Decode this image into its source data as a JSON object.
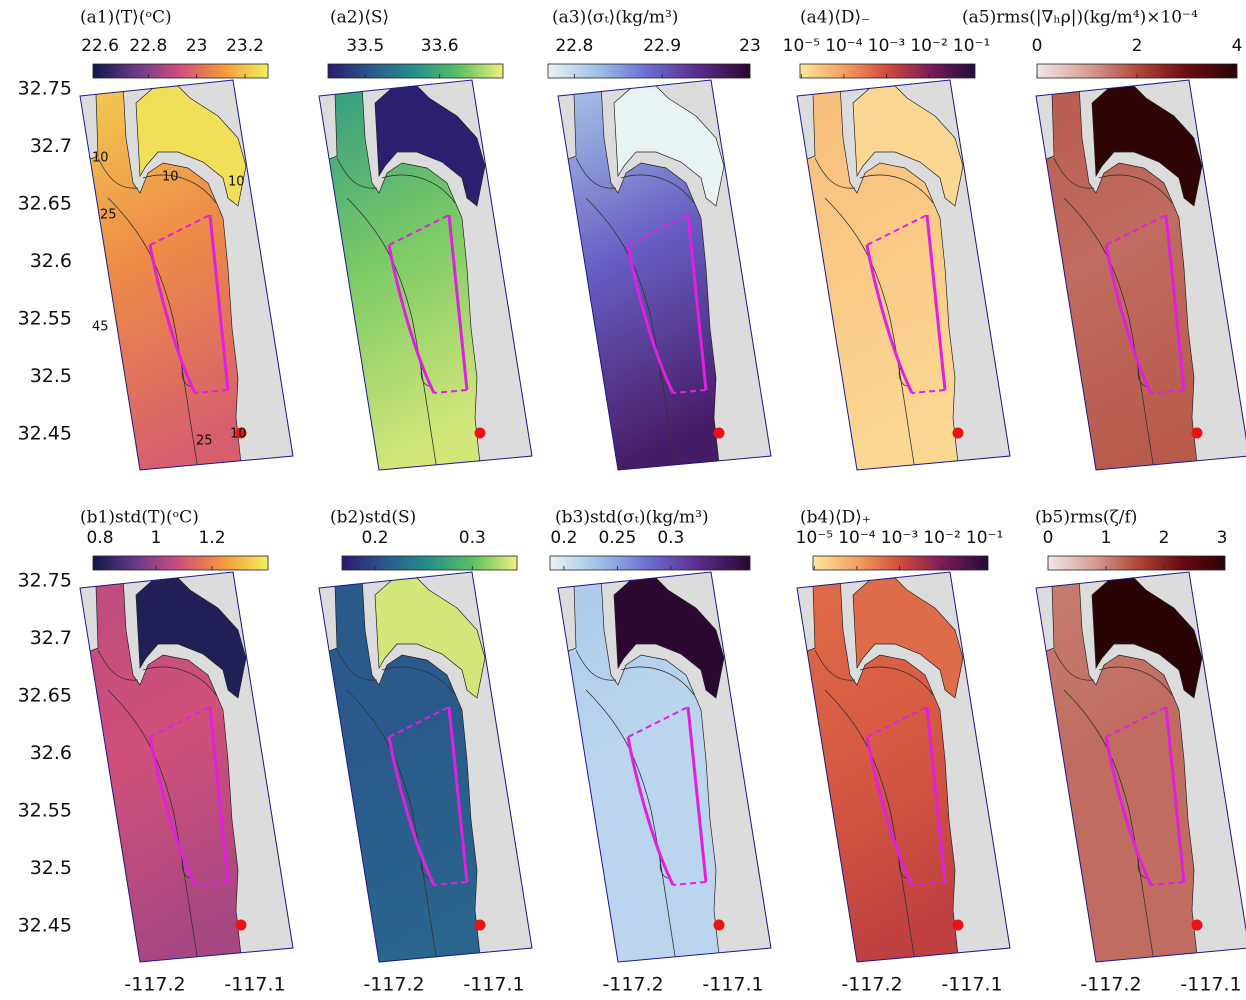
{
  "chart_data": [
    {
      "type": "map",
      "title": "(a1)⟨T⟩(ᵒC)",
      "xlim": [
        -117.277,
        -117.062
      ],
      "ylim": [
        32.4187,
        32.7596
      ],
      "yticks": [
        32.45,
        32.5,
        32.55,
        32.6,
        32.65,
        32.7,
        32.75
      ],
      "contour_labels": [
        10,
        10,
        10,
        25,
        45,
        25,
        10
      ],
      "colorbar": {
        "lim": [
          22.571,
          23.295
        ],
        "log": false,
        "ticks": [
          22.6,
          22.8,
          23,
          23.2
        ],
        "colors": [
          "#0d1a4a",
          "#6a3a8c",
          "#d0507a",
          "#f59a3a",
          "#f0f060"
        ]
      }
    },
    {
      "type": "map",
      "title": "(a2)⟨S⟩",
      "xlim": [
        -117.277,
        -117.062
      ],
      "ylim": [
        32.4187,
        32.7596
      ],
      "colorbar": {
        "lim": [
          33.45,
          33.685
        ],
        "log": false,
        "ticks": [
          33.5,
          33.6
        ],
        "colors": [
          "#2b1a6e",
          "#2a5a8c",
          "#24908c",
          "#5cc060",
          "#f0f080"
        ]
      }
    },
    {
      "type": "map",
      "title": "(a3)⟨σₜ⟩(kg/m³)",
      "xlim": [
        -117.277,
        -117.062
      ],
      "ylim": [
        32.4187,
        32.7596
      ],
      "colorbar": {
        "lim": [
          22.77,
          23.0
        ],
        "log": false,
        "ticks": [
          22.8,
          22.9,
          23
        ],
        "colors": [
          "#e8f4f4",
          "#9cc0e8",
          "#6a6ad0",
          "#5a2a8a",
          "#2a0830"
        ]
      }
    },
    {
      "type": "map",
      "title": "(a4)⟨D⟩₋",
      "xlim": [
        -117.277,
        -117.062
      ],
      "ylim": [
        32.4187,
        32.7596
      ],
      "colorbar": {
        "lim": [
          9.3e-06,
          0.12
        ],
        "log": true,
        "ticks": [
          {
            "value": 1e-05,
            "label": "10⁻⁵"
          },
          {
            "value": 0.0001,
            "label": "10⁻⁴"
          },
          {
            "value": 0.001,
            "label": "10⁻³"
          },
          {
            "value": 0.01,
            "label": "10⁻²"
          },
          {
            "value": 0.1,
            "label": "10⁻¹"
          }
        ],
        "colors": [
          "#fbe6a0",
          "#f5a060",
          "#d04a3a",
          "#7a1a5a",
          "#200c3a"
        ]
      }
    },
    {
      "type": "map",
      "title": "(a5)rms(|∇ₕρ|)(kg/m⁴)×10⁻⁴",
      "xlim": [
        -117.277,
        -117.062
      ],
      "ylim": [
        32.4187,
        32.7596
      ],
      "colorbar": {
        "lim": [
          0,
          4
        ],
        "log": false,
        "ticks": [
          0,
          2,
          4
        ],
        "colors": [
          "#f2e8e6",
          "#d8a098",
          "#b04a3a",
          "#6a0a12",
          "#2a0404"
        ]
      }
    },
    {
      "type": "map",
      "title": "(b1)std(T)(ᵒC)",
      "xlim": [
        -117.277,
        -117.062
      ],
      "ylim": [
        32.4187,
        32.7596
      ],
      "yticks": [
        32.45,
        32.5,
        32.55,
        32.6,
        32.65,
        32.7,
        32.75
      ],
      "xticks": [
        -117.2,
        -117.1
      ],
      "colorbar": {
        "lim": [
          0.775,
          1.4
        ],
        "log": false,
        "ticks": [
          0.8,
          1,
          1.2
        ],
        "colors": [
          "#0d1a4a",
          "#6a3a8c",
          "#d0507a",
          "#f59a3a",
          "#f0f060"
        ]
      }
    },
    {
      "type": "map",
      "title": "(b2)std(S)",
      "xlim": [
        -117.277,
        -117.062
      ],
      "ylim": [
        32.4187,
        32.7596
      ],
      "xticks": [
        -117.2,
        -117.1
      ],
      "colorbar": {
        "lim": [
          0.166,
          0.346
        ],
        "log": false,
        "ticks": [
          0.2,
          0.3
        ],
        "colors": [
          "#2b1a6e",
          "#2a5a8c",
          "#24908c",
          "#5cc060",
          "#f0f080"
        ]
      }
    },
    {
      "type": "map",
      "title": "(b3)std(σₜ)(kg/m³)",
      "xlim": [
        -117.277,
        -117.062
      ],
      "ylim": [
        32.4187,
        32.7596
      ],
      "xticks": [
        -117.2,
        -117.1
      ],
      "colorbar": {
        "lim": [
          0.187,
          0.374
        ],
        "log": false,
        "ticks": [
          0.2,
          0.25,
          0.3
        ],
        "colors": [
          "#e8f4f4",
          "#9cc0e8",
          "#6a6ad0",
          "#5a2a8a",
          "#2a0830"
        ]
      }
    },
    {
      "type": "map",
      "title": "(b4)⟨D⟩₊",
      "xlim": [
        -117.277,
        -117.062
      ],
      "ylim": [
        32.4187,
        32.7596
      ],
      "xticks": [
        -117.2,
        -117.1
      ],
      "colorbar": {
        "lim": [
          9.3e-06,
          0.12
        ],
        "log": true,
        "ticks": [
          {
            "value": 1e-05,
            "label": "10⁻⁵"
          },
          {
            "value": 0.0001,
            "label": "10⁻⁴"
          },
          {
            "value": 0.001,
            "label": "10⁻³"
          },
          {
            "value": 0.01,
            "label": "10⁻²"
          },
          {
            "value": 0.1,
            "label": "10⁻¹"
          }
        ],
        "colors": [
          "#fbe6a0",
          "#f5a060",
          "#d04a3a",
          "#7a1a5a",
          "#200c3a"
        ]
      }
    },
    {
      "type": "map",
      "title": "(b5)rms(ζ/f)",
      "xlim": [
        -117.277,
        -117.062
      ],
      "ylim": [
        32.4187,
        32.7596
      ],
      "xticks": [
        -117.2,
        -117.1
      ],
      "colorbar": {
        "lim": [
          0,
          3.05
        ],
        "log": false,
        "ticks": [
          0,
          1,
          2,
          3
        ],
        "colors": [
          "#f2e8e6",
          "#d8a098",
          "#b04a3a",
          "#6a0a12",
          "#2a0404"
        ]
      }
    }
  ]
}
